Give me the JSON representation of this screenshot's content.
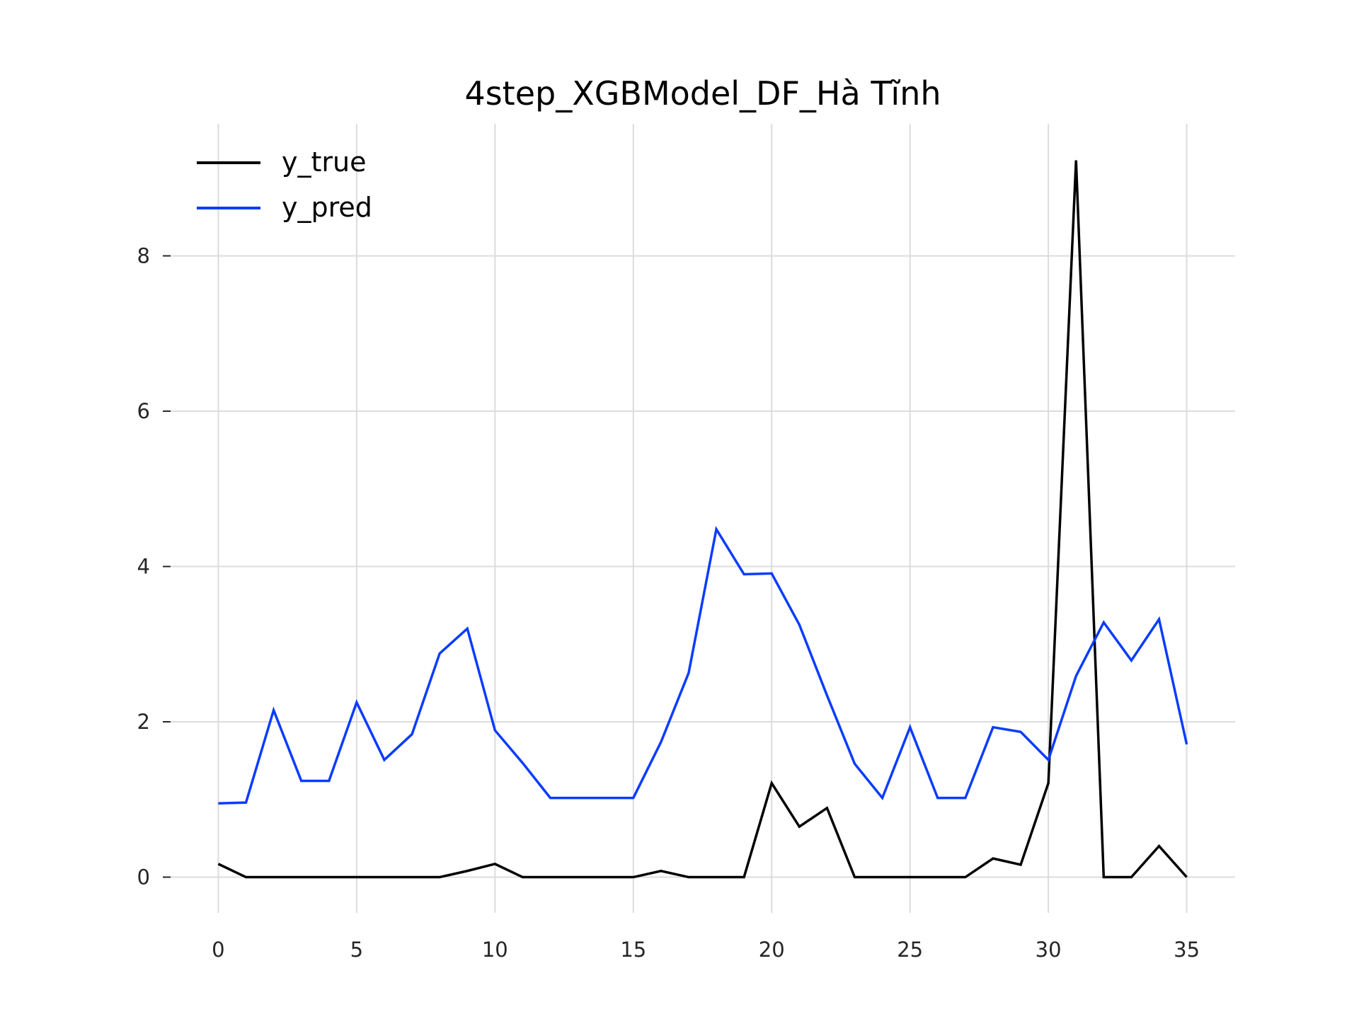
{
  "chart_data": {
    "type": "line",
    "title": "4step_XGBModel_DF_Hà Tĩnh",
    "xlabel": "",
    "ylabel": "",
    "xlim": [
      -1.75,
      36.75
    ],
    "ylim": [
      -0.46,
      9.7
    ],
    "x_ticks": [
      0,
      5,
      10,
      15,
      20,
      25,
      30,
      35
    ],
    "y_ticks": [
      0,
      2,
      4,
      6,
      8
    ],
    "grid": true,
    "legend_position": "top-left",
    "x": [
      0,
      1,
      2,
      3,
      4,
      5,
      6,
      7,
      8,
      9,
      10,
      11,
      12,
      13,
      14,
      15,
      16,
      17,
      18,
      19,
      20,
      21,
      22,
      23,
      24,
      25,
      26,
      27,
      28,
      29,
      30,
      31,
      32,
      33,
      34,
      35
    ],
    "series": [
      {
        "name": "y_true",
        "color": "#000000",
        "values": [
          0.17,
          0,
          0,
          0,
          0,
          0,
          0,
          0,
          0,
          0.08,
          0.17,
          0,
          0,
          0,
          0,
          0,
          0.08,
          0,
          0,
          0,
          1.21,
          0.65,
          0.89,
          0,
          0,
          0,
          0,
          0,
          0.24,
          0.16,
          1.21,
          9.23,
          0,
          0,
          0.4,
          0
        ]
      },
      {
        "name": "y_pred",
        "color": "#0a3cff",
        "values": [
          0.95,
          0.96,
          2.15,
          1.24,
          1.24,
          2.25,
          1.51,
          1.84,
          2.88,
          3.2,
          1.89,
          1.47,
          1.02,
          1.02,
          1.02,
          1.02,
          1.74,
          2.63,
          4.48,
          3.9,
          3.91,
          3.25,
          2.34,
          1.46,
          1.02,
          1.93,
          1.02,
          1.02,
          1.93,
          1.87,
          1.51,
          2.59,
          3.28,
          2.79,
          3.32,
          1.71
        ]
      }
    ]
  }
}
